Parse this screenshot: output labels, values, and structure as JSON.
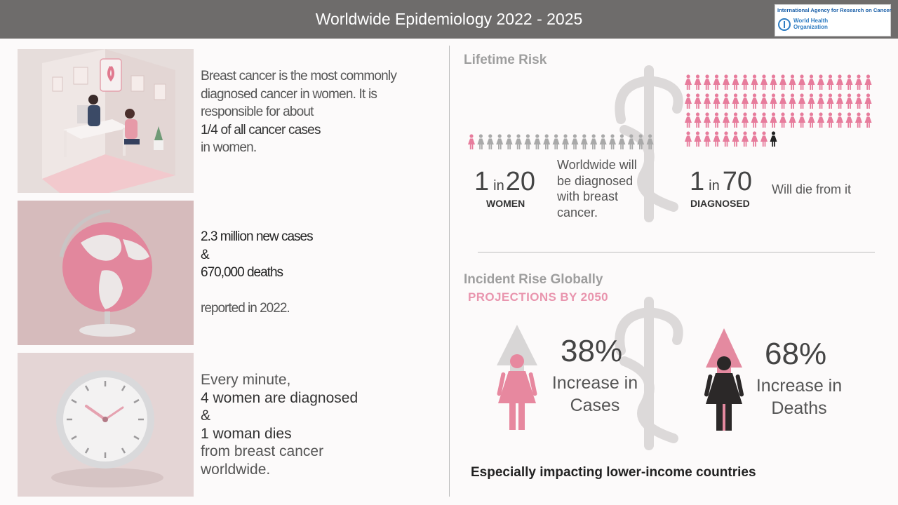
{
  "header": {
    "title": "Worldwide Epidemiology 2022 - 2025",
    "logo_top": "International Agency for Research on Cancer",
    "logo_who_line1": "World Health",
    "logo_who_line2": "Organization"
  },
  "left": {
    "block1": {
      "line1": "Breast cancer is the most commonly",
      "line2": "diagnosed cancer in women. It is",
      "line3": "responsible for about",
      "line4": "1/4 of all cancer cases",
      "line5": "in women."
    },
    "block2": {
      "line1": "2.3 million new cases",
      "line2": "&",
      "line3": "670,000 deaths",
      "line4": "reported in 2022."
    },
    "block3": {
      "line1": "Every minute,",
      "line2": "4 women are diagnosed",
      "line3": "&",
      "line4": "1 woman dies",
      "line5": "from breast cancer",
      "line6": "worldwide."
    }
  },
  "lifetime_risk": {
    "title": "Lifetime Risk",
    "women_count": 20,
    "women_highlighted": 1,
    "diagnosed_count": 70,
    "diagnosed_highlighted": 1,
    "stat1": {
      "num": "1",
      "in": "in",
      "den": "20",
      "label": "WOMEN",
      "desc_line1": "Worldwide will",
      "desc_line2": "be diagnosed",
      "desc_line3": "with breast",
      "desc_line4": "cancer."
    },
    "stat2": {
      "num": "1",
      "in": "in",
      "den": "70",
      "label": "DIAGNOSED",
      "desc": "Will die from it"
    },
    "colors": {
      "pink": "#e77c9c",
      "grey": "#a9a9a9",
      "dark": "#222222"
    }
  },
  "incident": {
    "title": "Incident Rise Globally",
    "subtitle": "PROJECTIONS BY 2050",
    "cases": {
      "pct": "38%",
      "label_line1": "Increase in",
      "label_line2": "Cases"
    },
    "deaths": {
      "pct": "68%",
      "label_line1": "Increase in",
      "label_line2": "Deaths"
    },
    "note": "Especially impacting lower-income countries"
  }
}
